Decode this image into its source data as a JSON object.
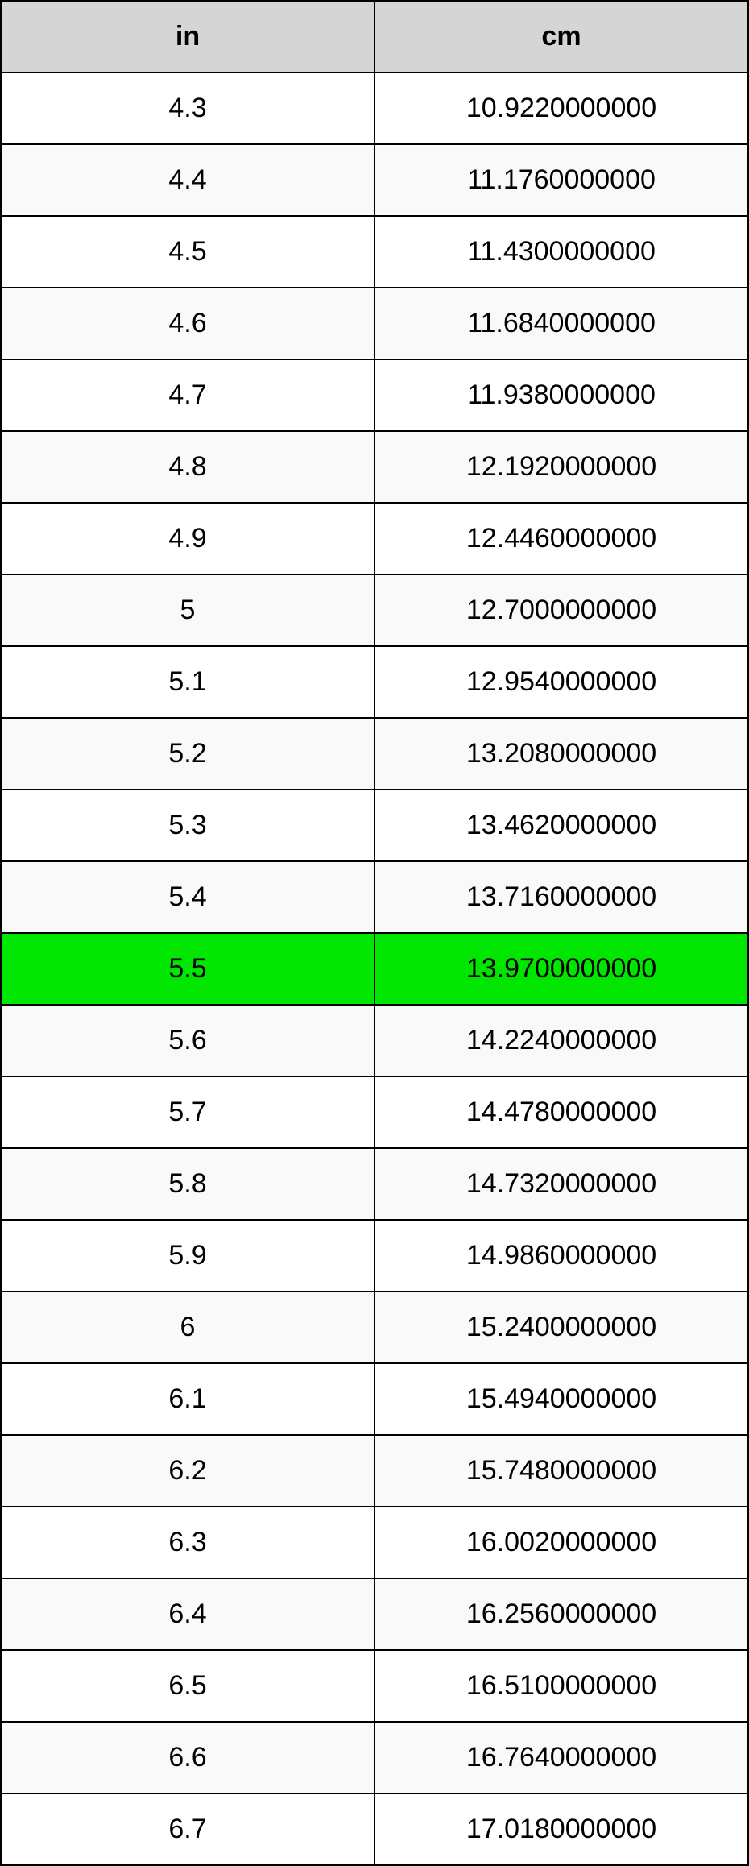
{
  "table": {
    "type": "table",
    "columns": [
      "in",
      "cm"
    ],
    "header_background": "#d5d5d5",
    "header_text_color": "#000000",
    "border_color": "#000000",
    "row_background_odd": "#ffffff",
    "row_background_even": "#f9f9f9",
    "highlight_background": "#00e600",
    "highlight_row_index": 12,
    "font_size": 34,
    "rows": [
      [
        "4.3",
        "10.9220000000"
      ],
      [
        "4.4",
        "11.1760000000"
      ],
      [
        "4.5",
        "11.4300000000"
      ],
      [
        "4.6",
        "11.6840000000"
      ],
      [
        "4.7",
        "11.9380000000"
      ],
      [
        "4.8",
        "12.1920000000"
      ],
      [
        "4.9",
        "12.4460000000"
      ],
      [
        "5",
        "12.7000000000"
      ],
      [
        "5.1",
        "12.9540000000"
      ],
      [
        "5.2",
        "13.2080000000"
      ],
      [
        "5.3",
        "13.4620000000"
      ],
      [
        "5.4",
        "13.7160000000"
      ],
      [
        "5.5",
        "13.9700000000"
      ],
      [
        "5.6",
        "14.2240000000"
      ],
      [
        "5.7",
        "14.4780000000"
      ],
      [
        "5.8",
        "14.7320000000"
      ],
      [
        "5.9",
        "14.9860000000"
      ],
      [
        "6",
        "15.2400000000"
      ],
      [
        "6.1",
        "15.4940000000"
      ],
      [
        "6.2",
        "15.7480000000"
      ],
      [
        "6.3",
        "16.0020000000"
      ],
      [
        "6.4",
        "16.2560000000"
      ],
      [
        "6.5",
        "16.5100000000"
      ],
      [
        "6.6",
        "16.7640000000"
      ],
      [
        "6.7",
        "17.0180000000"
      ]
    ]
  }
}
